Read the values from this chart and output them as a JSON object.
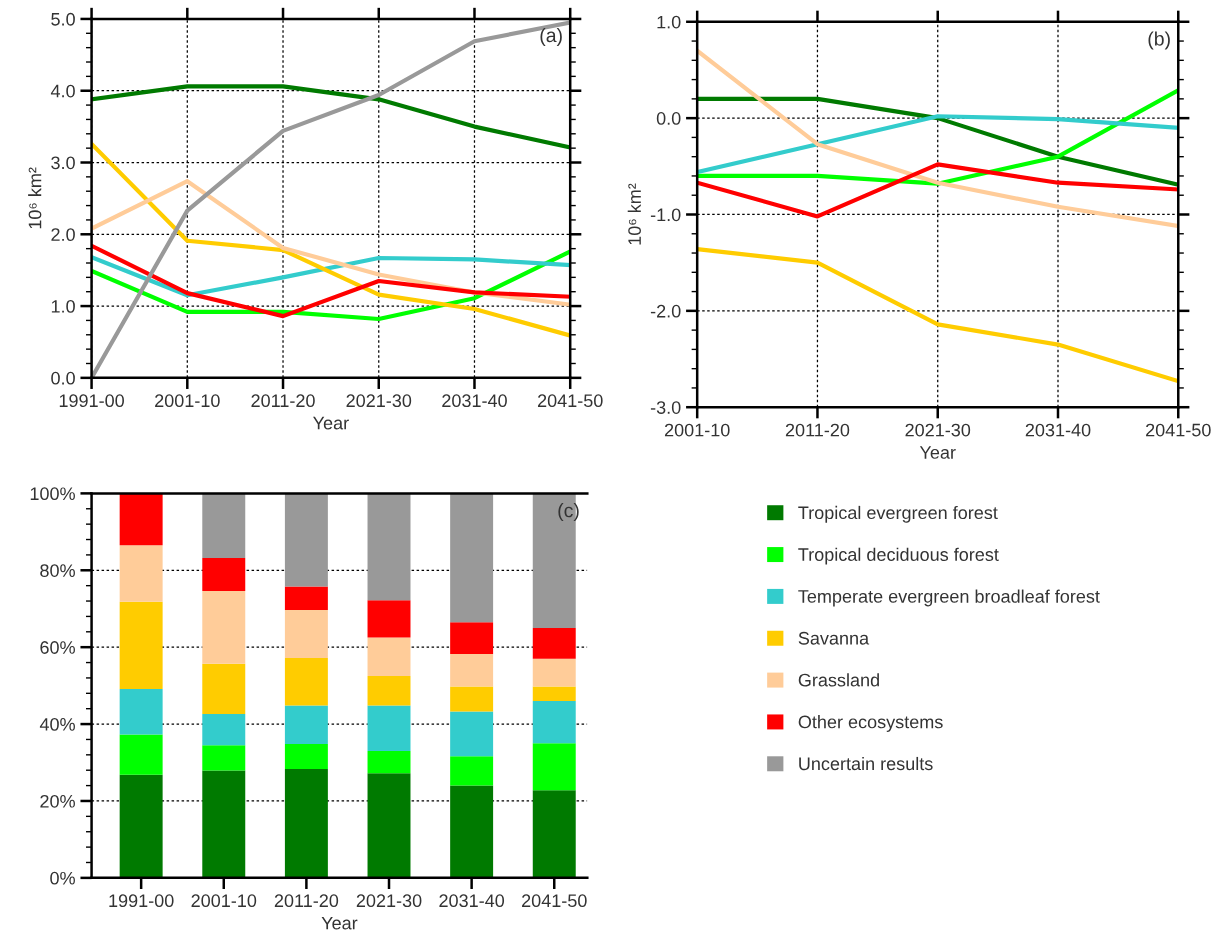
{
  "chart_data": [
    {
      "type": "line",
      "xlabel": "Year",
      "ylabel": "10⁶ km²",
      "categories": [
        "1991-00",
        "2001-10",
        "2011-20",
        "2021-30",
        "2031-40",
        "2041-50"
      ],
      "ylim": [
        0,
        5
      ],
      "yticks": [
        {
          "value": 0,
          "label": "0.0"
        },
        {
          "value": 1,
          "label": "1.0"
        },
        {
          "value": 2,
          "label": "2.0"
        },
        {
          "value": 3,
          "label": "3.0"
        },
        {
          "value": 4,
          "label": "4.0"
        },
        {
          "value": 5,
          "label": "5.0"
        }
      ],
      "grid": true,
      "annotations": [
        "(a)"
      ],
      "series": [
        {
          "color": "#007a00",
          "values": [
            3.88,
            4.06,
            4.06,
            3.88,
            3.5,
            3.21
          ]
        },
        {
          "color": "#00ff00",
          "values": [
            1.49,
            0.92,
            0.92,
            0.82,
            1.11,
            1.76
          ]
        },
        {
          "color": "#33cccc",
          "values": [
            1.68,
            1.15,
            1.4,
            1.67,
            1.65,
            1.57
          ]
        },
        {
          "color": "#ffcc00",
          "values": [
            3.26,
            1.91,
            1.78,
            1.16,
            0.96,
            0.59
          ]
        },
        {
          "color": "#ffcc99",
          "values": [
            2.08,
            2.74,
            1.81,
            1.44,
            1.19,
            1.02
          ]
        },
        {
          "color": "#ff0000",
          "values": [
            1.84,
            1.18,
            0.86,
            1.35,
            1.19,
            1.13
          ]
        },
        {
          "color": "#999999",
          "values": [
            0.0,
            2.33,
            3.44,
            3.94,
            4.69,
            4.95
          ]
        }
      ]
    },
    {
      "type": "line",
      "xlabel": "Year",
      "ylabel": "10⁶ km²",
      "categories": [
        "2001-10",
        "2011-20",
        "2021-30",
        "2031-40",
        "2041-50"
      ],
      "ylim": [
        -3,
        1
      ],
      "yticks": [
        {
          "value": -3,
          "label": "-3.0"
        },
        {
          "value": -2,
          "label": "-2.0"
        },
        {
          "value": -1,
          "label": "-1.0"
        },
        {
          "value": 0,
          "label": "0.0"
        },
        {
          "value": 1,
          "label": "1.0"
        }
      ],
      "grid": true,
      "annotations": [
        "(b)"
      ],
      "series": [
        {
          "color": "#007a00",
          "values": [
            0.2,
            0.2,
            0.0,
            -0.4,
            -0.69
          ]
        },
        {
          "color": "#00ff00",
          "values": [
            -0.6,
            -0.6,
            -0.68,
            -0.4,
            0.29
          ]
        },
        {
          "color": "#33cccc",
          "values": [
            -0.56,
            -0.27,
            0.02,
            -0.01,
            -0.1
          ]
        },
        {
          "color": "#ffcc00",
          "values": [
            -1.36,
            -1.5,
            -2.14,
            -2.35,
            -2.73
          ]
        },
        {
          "color": "#ffcc99",
          "values": [
            0.7,
            -0.27,
            -0.67,
            -0.92,
            -1.12
          ]
        },
        {
          "color": "#ff0000",
          "values": [
            -0.67,
            -1.02,
            -0.48,
            -0.67,
            -0.74
          ]
        }
      ]
    },
    {
      "type": "bar",
      "stacked": true,
      "xlabel": "Year",
      "categories": [
        "1991-00",
        "2001-10",
        "2011-20",
        "2021-30",
        "2031-40",
        "2041-50"
      ],
      "ylim": [
        0,
        100
      ],
      "yticks": [
        {
          "value": 0,
          "label": "0%"
        },
        {
          "value": 20,
          "label": "20%"
        },
        {
          "value": 40,
          "label": "40%"
        },
        {
          "value": 60,
          "label": "60%"
        },
        {
          "value": 80,
          "label": "80%"
        },
        {
          "value": 100,
          "label": "100%"
        }
      ],
      "grid": "y",
      "legend": "right",
      "annotations": [
        "(c)"
      ],
      "series": [
        {
          "name": "Tropical evergreen forest",
          "color": "#007a00",
          "values": [
            26.8,
            27.9,
            28.3,
            27.2,
            24.0,
            22.8
          ]
        },
        {
          "name": "Tropical deciduous forest",
          "color": "#00ff00",
          "values": [
            10.5,
            6.6,
            6.5,
            5.8,
            7.6,
            12.2
          ]
        },
        {
          "name": "Temperate evergreen broadleaf forest",
          "color": "#33cccc",
          "values": [
            11.8,
            8.1,
            10.0,
            11.8,
            11.7,
            11.0
          ]
        },
        {
          "name": "Savanna",
          "color": "#ffcc00",
          "values": [
            22.7,
            13.1,
            12.4,
            7.7,
            6.5,
            3.8
          ]
        },
        {
          "name": "Grassland",
          "color": "#ffcc99",
          "values": [
            14.7,
            18.9,
            12.5,
            10.0,
            8.4,
            7.2
          ]
        },
        {
          "name": "Other ecosystems",
          "color": "#ff0000",
          "values": [
            13.5,
            8.6,
            6.1,
            9.7,
            8.3,
            8.0
          ]
        },
        {
          "name": "Uncertain results",
          "color": "#999999",
          "values": [
            0,
            16.8,
            24.2,
            27.8,
            33.5,
            35.0
          ]
        }
      ]
    }
  ]
}
